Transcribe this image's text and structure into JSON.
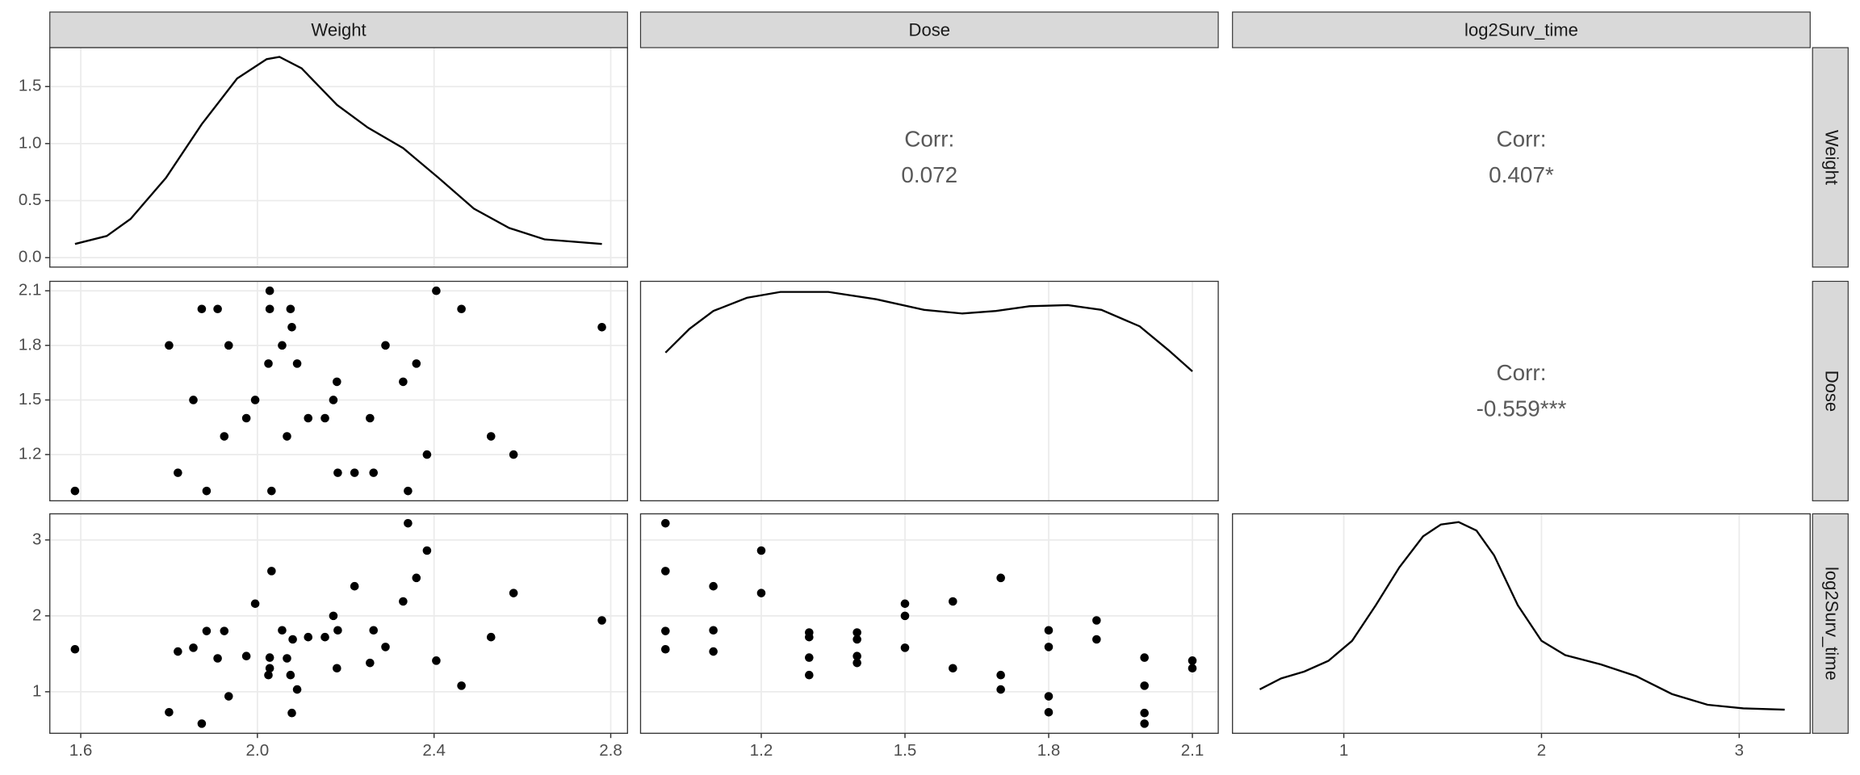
{
  "chart_data": {
    "type": "pairs",
    "variables": [
      "Weight",
      "Dose",
      "log2Surv_time"
    ],
    "x_axes": [
      {
        "xlim": [
          1.53,
          2.838
        ],
        "xticks": [
          1.6,
          {
            "value": 2,
            "label": "2.0"
          },
          2.4,
          2.8
        ]
      },
      {
        "xlim": [
          0.948,
          2.154
        ],
        "xticks": [
          1.2,
          1.5,
          1.8,
          2.1
        ]
      },
      {
        "xlim": [
          0.437,
          3.359
        ],
        "xticks": [
          1,
          2,
          3
        ]
      }
    ],
    "y_axes": [
      {
        "ylim": [
          -0.083,
          1.841
        ],
        "yticks": [
          {
            "value": 0,
            "label": "0.0"
          },
          0.5,
          {
            "value": 1,
            "label": "1.0"
          },
          1.5
        ]
      },
      {
        "ylim": [
          0.946,
          2.152
        ],
        "yticks": [
          1.2,
          1.5,
          1.8,
          2.1
        ]
      },
      {
        "ylim": [
          0.453,
          3.344
        ],
        "yticks": [
          1,
          2,
          3
        ]
      }
    ],
    "panels": [
      {
        "type": "density",
        "x": [
          1.587,
          1.659,
          1.713,
          1.793,
          1.874,
          1.954,
          2.021,
          2.05,
          2.1,
          2.18,
          2.25,
          2.33,
          2.41,
          2.49,
          2.57,
          2.65,
          2.78
        ],
        "values": [
          0.12,
          0.19,
          0.34,
          0.7,
          1.17,
          1.57,
          1.74,
          1.76,
          1.66,
          1.34,
          1.14,
          0.96,
          0.7,
          0.43,
          0.26,
          0.16,
          0.12
        ]
      },
      {
        "type": "correlation",
        "label": "Corr:",
        "value": 0.072,
        "value_label": "0.072"
      },
      {
        "type": "correlation",
        "label": "Corr:",
        "value": 0.407,
        "value_label": "0.407*"
      },
      {
        "type": "scatter",
        "x": [
          1.587,
          1.8,
          1.82,
          1.855,
          1.874,
          1.885,
          1.91,
          1.925,
          1.935,
          1.975,
          1.995,
          2.025,
          2.028,
          2.028,
          2.032,
          2.056,
          2.067,
          2.075,
          2.078,
          2.09,
          2.115,
          2.153,
          2.172,
          2.18,
          2.182,
          2.22,
          2.255,
          2.263,
          2.29,
          2.33,
          2.341,
          2.36,
          2.384,
          2.405,
          2.462,
          2.529,
          2.58,
          2.78
        ],
        "values": [
          1.0,
          1.8,
          1.1,
          1.5,
          2.0,
          1.0,
          2.0,
          1.3,
          1.8,
          1.4,
          1.5,
          1.7,
          2.1,
          2.0,
          1.0,
          1.8,
          1.3,
          2.0,
          1.9,
          1.7,
          1.4,
          1.4,
          1.5,
          1.6,
          1.1,
          1.1,
          1.4,
          1.1,
          1.8,
          1.6,
          1.0,
          1.7,
          1.2,
          2.1,
          2.0,
          1.3,
          1.2,
          1.9
        ]
      },
      {
        "type": "density",
        "ylim": [
          0.4,
          1.0
        ],
        "x": [
          1.0,
          1.05,
          1.1,
          1.17,
          1.24,
          1.34,
          1.44,
          1.54,
          1.62,
          1.69,
          1.76,
          1.84,
          1.91,
          1.99,
          2.05,
          2.1
        ],
        "values": [
          0.805,
          0.87,
          0.919,
          0.955,
          0.971,
          0.971,
          0.951,
          0.922,
          0.912,
          0.919,
          0.932,
          0.935,
          0.922,
          0.877,
          0.812,
          0.754
        ]
      },
      {
        "type": "correlation",
        "label": "Corr:",
        "value": -0.559,
        "value_label": "-0.559***"
      },
      {
        "type": "scatter",
        "x": [
          1.587,
          1.8,
          1.82,
          1.855,
          1.874,
          1.885,
          1.91,
          1.925,
          1.935,
          1.975,
          1.995,
          2.025,
          2.028,
          2.028,
          2.032,
          2.056,
          2.067,
          2.075,
          2.078,
          2.08,
          2.09,
          2.115,
          2.153,
          2.172,
          2.18,
          2.182,
          2.22,
          2.255,
          2.263,
          2.29,
          2.33,
          2.341,
          2.36,
          2.384,
          2.405,
          2.462,
          2.529,
          2.58,
          2.78
        ],
        "values": [
          1.56,
          0.73,
          1.53,
          1.58,
          0.58,
          1.8,
          1.44,
          1.8,
          0.94,
          1.47,
          2.16,
          1.22,
          1.45,
          1.31,
          2.59,
          1.81,
          1.44,
          1.22,
          0.72,
          1.69,
          1.03,
          1.72,
          1.72,
          2.0,
          1.31,
          1.81,
          2.39,
          1.38,
          1.81,
          1.59,
          2.19,
          3.22,
          2.5,
          2.86,
          1.41,
          1.08,
          1.72,
          2.3,
          1.94
        ]
      },
      {
        "type": "scatter",
        "x": [
          1.0,
          1.0,
          1.0,
          1.0,
          1.1,
          1.1,
          1.1,
          1.2,
          1.2,
          1.3,
          1.3,
          1.3,
          1.3,
          1.4,
          1.4,
          1.4,
          1.4,
          1.5,
          1.5,
          1.5,
          1.6,
          1.6,
          1.7,
          1.7,
          1.7,
          1.8,
          1.8,
          1.8,
          1.8,
          1.9,
          1.9,
          2.0,
          2.0,
          2.0,
          2.0,
          2.1,
          2.1
        ],
        "values": [
          3.22,
          2.59,
          1.8,
          1.56,
          2.39,
          1.81,
          1.53,
          2.86,
          2.3,
          1.78,
          1.72,
          1.45,
          1.22,
          1.78,
          1.69,
          1.47,
          1.38,
          2.16,
          2.0,
          1.58,
          2.19,
          1.31,
          2.5,
          1.22,
          1.03,
          1.81,
          1.59,
          0.94,
          0.73,
          1.94,
          1.69,
          1.45,
          1.08,
          0.72,
          0.58,
          1.41,
          1.31
        ]
      },
      {
        "type": "density",
        "ylim": [
          0,
          0.8
        ],
        "x": [
          0.575,
          0.683,
          0.8,
          0.922,
          1.042,
          1.162,
          1.281,
          1.401,
          1.491,
          1.581,
          1.671,
          1.76,
          1.88,
          2.0,
          2.12,
          2.3,
          2.48,
          2.66,
          2.84,
          3.02,
          3.23
        ],
        "values": [
          0.16,
          0.2,
          0.225,
          0.264,
          0.337,
          0.467,
          0.605,
          0.718,
          0.761,
          0.77,
          0.739,
          0.649,
          0.467,
          0.337,
          0.285,
          0.251,
          0.208,
          0.143,
          0.104,
          0.091,
          0.086
        ]
      }
    ]
  }
}
